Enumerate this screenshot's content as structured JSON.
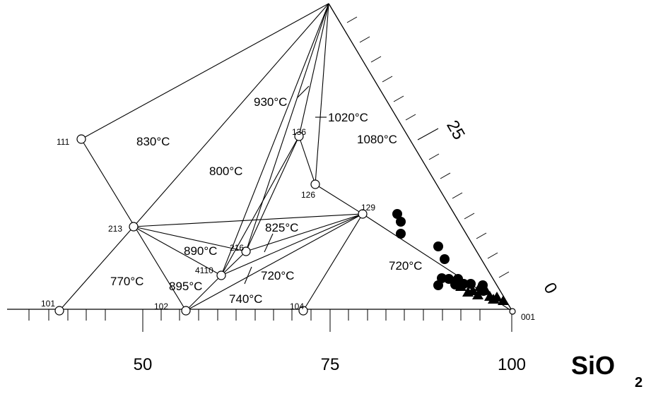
{
  "diagram": {
    "node_labels": {
      "n111": "111",
      "n213": "213",
      "n101": "101",
      "n102": "102",
      "n104": "104",
      "n136": "136",
      "n126": "126",
      "n129": "129",
      "n216": "216",
      "n4110": "4110",
      "n001": "001"
    },
    "temperatures": {
      "t830": "830°C",
      "t800": "800°C",
      "t930": "930°C",
      "t1020": "1020°C",
      "t1080": "1080°C",
      "t825": "825°C",
      "t890": "890°C",
      "t720a": "720°C",
      "t720b": "720°C",
      "t770": "770°C",
      "t895": "895°C",
      "t740": "740°C"
    },
    "bottom_axis": {
      "ticks": [
        "50",
        "75",
        "100"
      ],
      "label": "SiO",
      "label_subscript": "2"
    },
    "right_axis": {
      "ticks": [
        "25",
        "0"
      ]
    },
    "point_series": [
      {
        "marker": "filled-circle",
        "count": 14
      },
      {
        "marker": "filled-triangle",
        "count": 10
      }
    ]
  }
}
